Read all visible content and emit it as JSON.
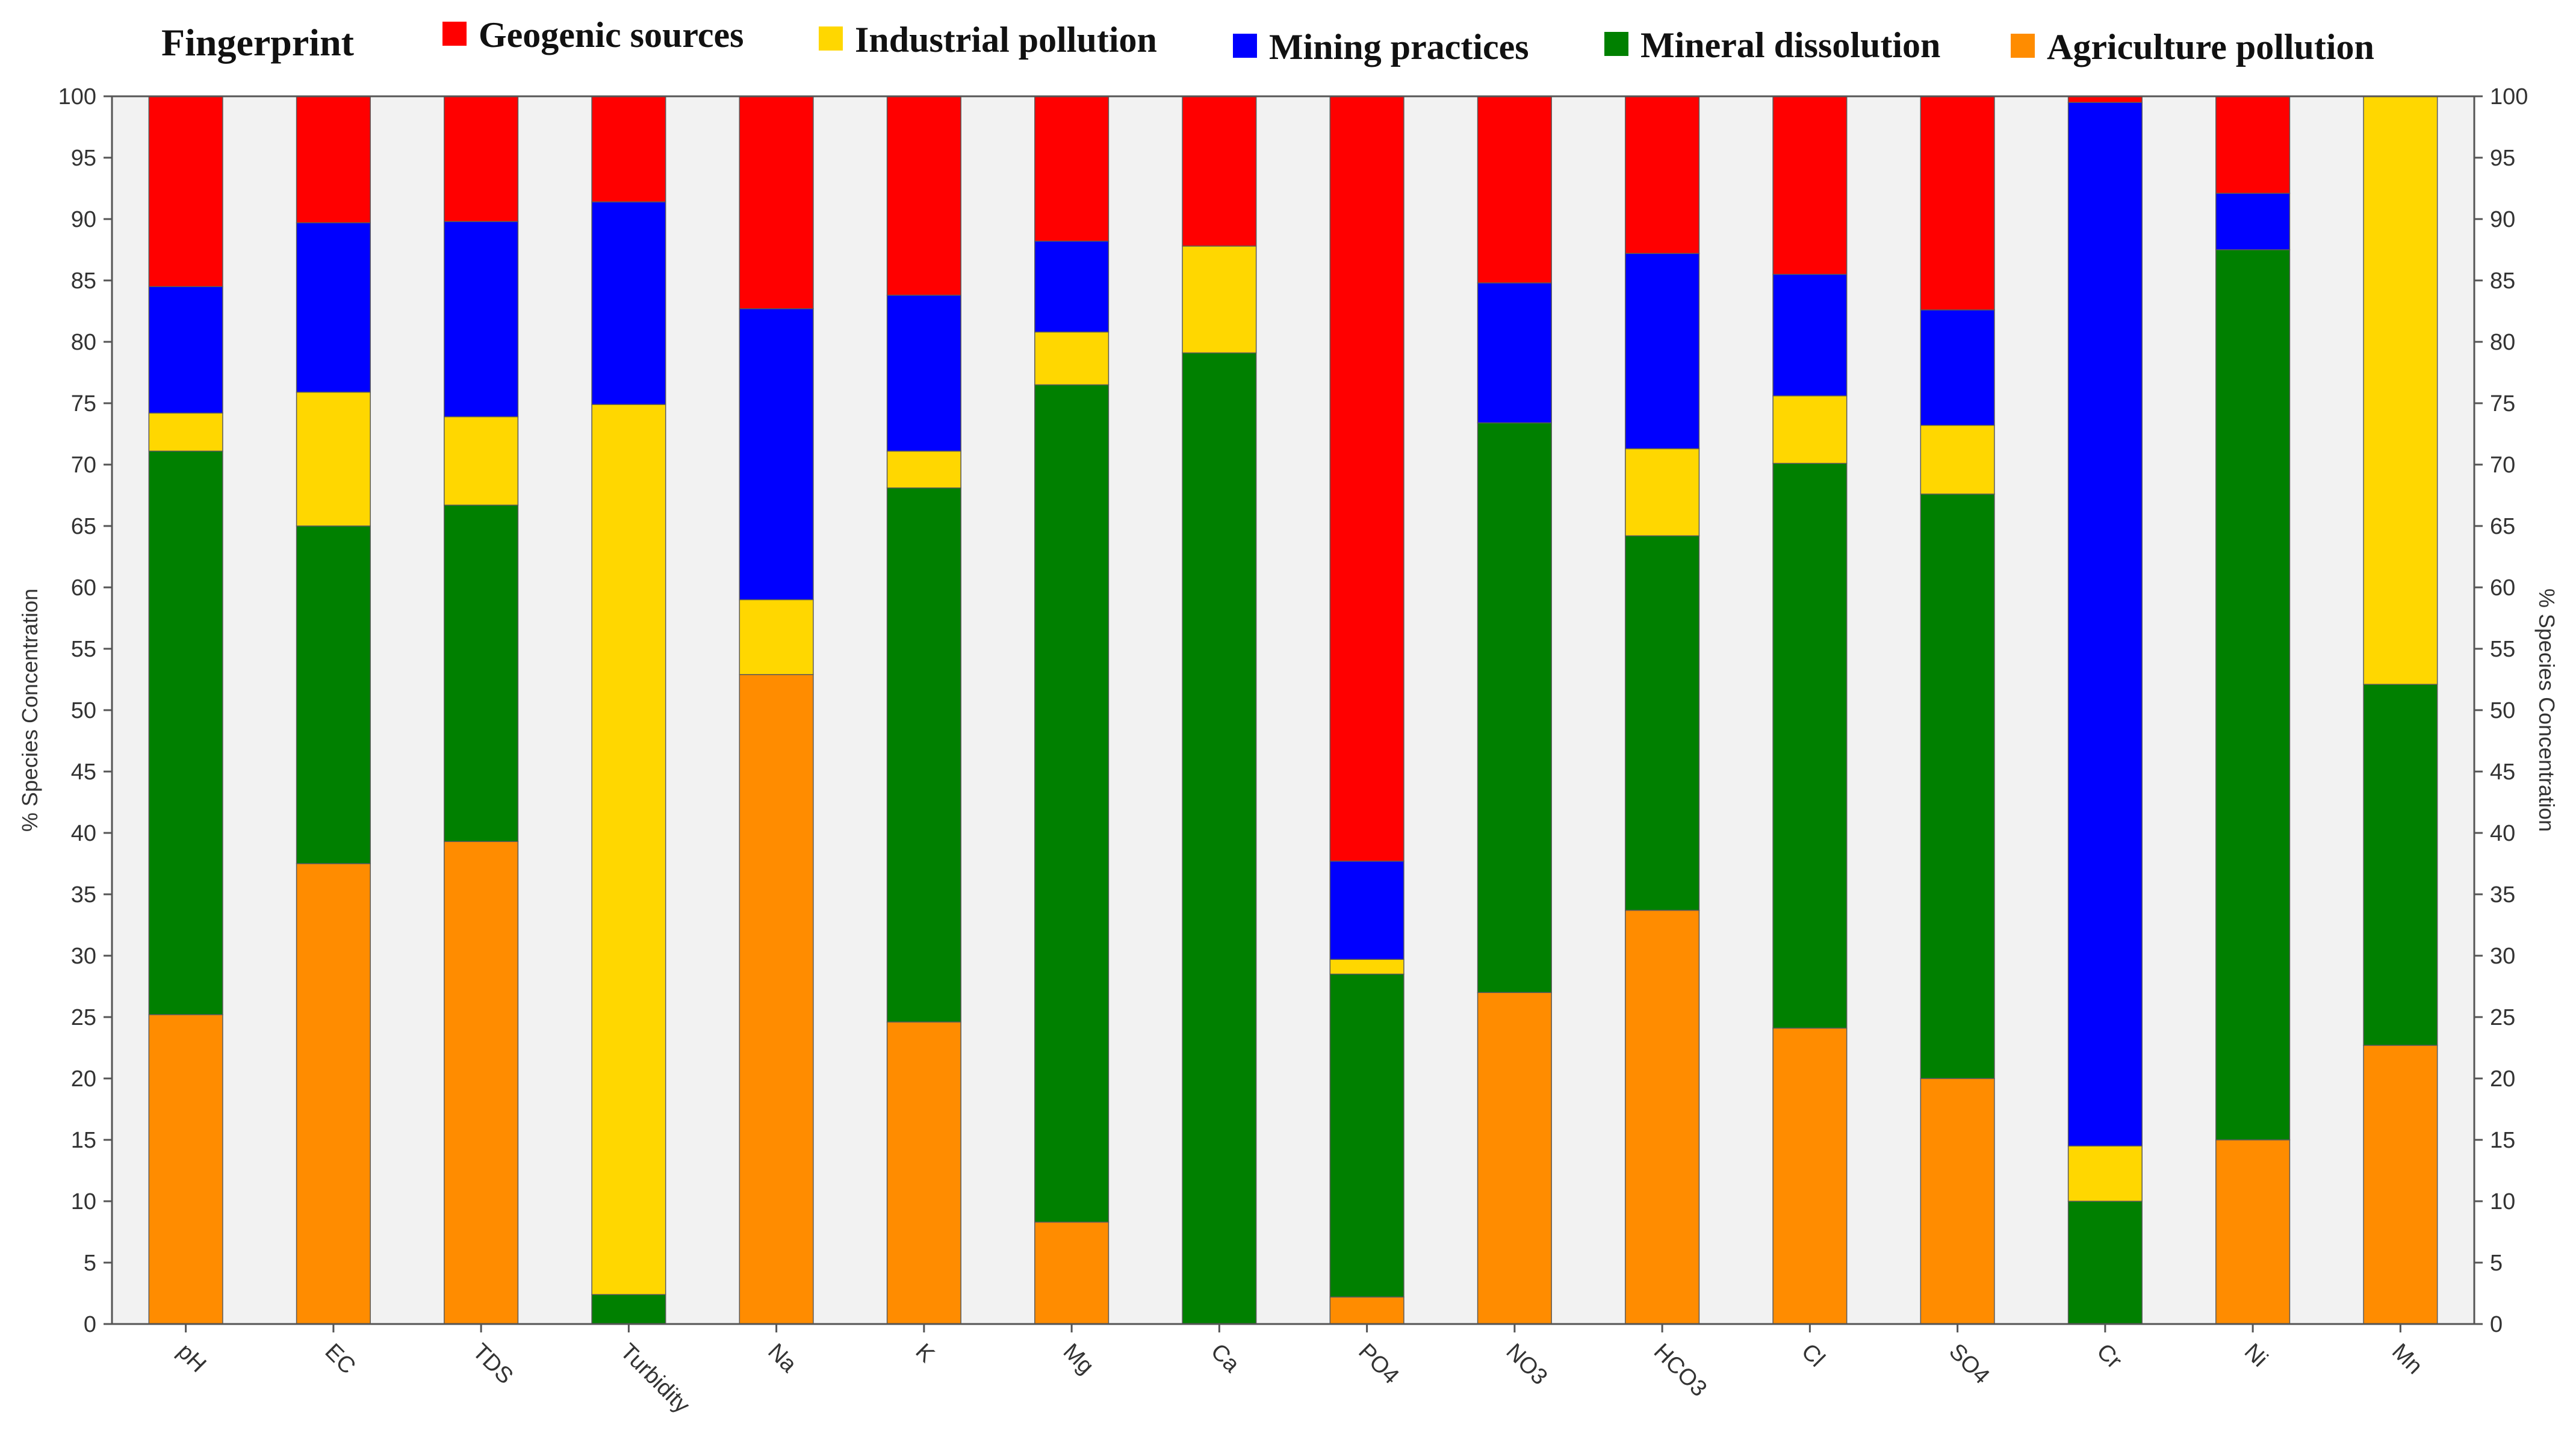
{
  "chart_data": {
    "type": "bar",
    "stacked": true,
    "title": "Fingerprint",
    "ylabel": "% Species Concentration",
    "ylabel_right": "% Species Concentration",
    "xlabel": "",
    "ylim": [
      0,
      100
    ],
    "y_ticks": [
      0,
      5,
      10,
      15,
      20,
      25,
      30,
      35,
      40,
      45,
      50,
      55,
      60,
      65,
      70,
      75,
      80,
      85,
      90,
      95,
      100
    ],
    "legend_position": "top",
    "categories": [
      "pH",
      "EC",
      "TDS",
      "Turbidity",
      "Na",
      "K",
      "Mg",
      "Ca",
      "PO4",
      "NO3",
      "HCO3",
      "Cl",
      "SO4",
      "Cr",
      "Ni",
      "Mn"
    ],
    "series": [
      {
        "name": "Agriculture pollution",
        "color": "#FF8C00",
        "values": [
          25.2,
          37.5,
          39.3,
          0,
          52.9,
          24.6,
          8.3,
          0,
          2.2,
          27.0,
          33.7,
          24.1,
          20.0,
          0,
          15.0,
          22.7
        ]
      },
      {
        "name": "Mineral dissolution",
        "color": "#008000",
        "values": [
          45.9,
          27.5,
          27.4,
          2.4,
          0,
          43.5,
          68.2,
          79.1,
          26.3,
          46.4,
          30.5,
          46.0,
          47.6,
          10.0,
          72.5,
          29.4
        ]
      },
      {
        "name": "Industrial pollution",
        "color": "#FFD700",
        "values": [
          3.1,
          10.9,
          7.2,
          72.5,
          6.1,
          3.0,
          4.3,
          8.7,
          1.2,
          0,
          7.1,
          5.5,
          5.6,
          4.5,
          0,
          47.9
        ]
      },
      {
        "name": "Mining practices",
        "color": "#0000FF",
        "values": [
          10.3,
          13.8,
          15.9,
          16.5,
          23.7,
          12.7,
          7.4,
          0,
          8.0,
          11.4,
          15.9,
          9.9,
          9.4,
          85.0,
          4.6,
          0
        ]
      },
      {
        "name": "Geogenic sources",
        "color": "#FF0000",
        "values": [
          15.5,
          10.3,
          10.2,
          8.6,
          17.3,
          16.2,
          11.8,
          12.2,
          62.3,
          15.2,
          12.8,
          14.5,
          17.4,
          0.5,
          7.9,
          0
        ]
      }
    ],
    "legend_order": [
      "Geogenic sources",
      "Industrial pollution",
      "Mining practices",
      "Mineral dissolution",
      "Agriculture pollution"
    ]
  }
}
